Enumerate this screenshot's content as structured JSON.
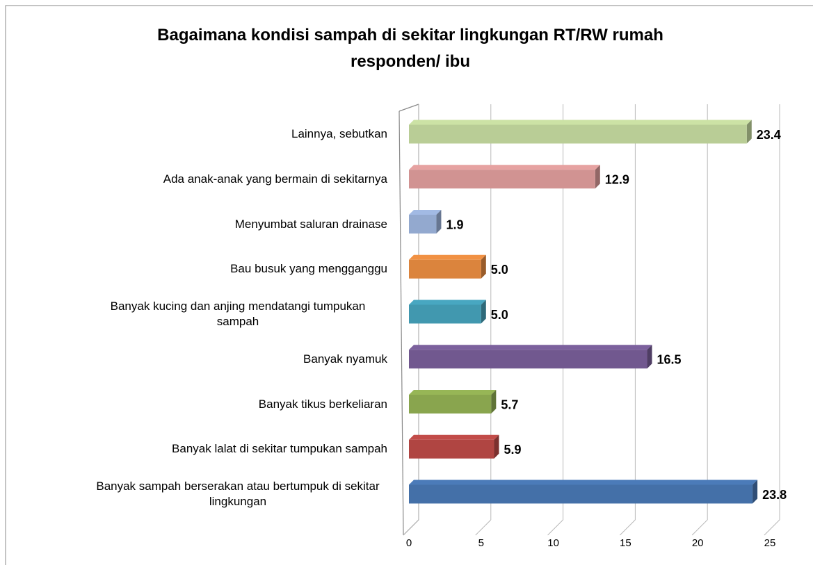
{
  "chart_data": {
    "type": "bar3d_horizontal",
    "title": "Bagaimana kondisi sampah di sekitar lingkungan RT/RW rumah responden/ ibu",
    "categories": [
      "Banyak sampah berserakan atau bertumpuk di sekitar lingkungan",
      "Banyak lalat di sekitar tumpukan sampah",
      "Banyak tikus berkeliaran",
      "Banyak nyamuk",
      "Banyak kucing dan anjing mendatangi tumpukan sampah",
      "Bau busuk yang mengganggu",
      "Menyumbat saluran drainase",
      "Ada anak-anak yang bermain di sekitarnya",
      "Lainnya, sebutkan"
    ],
    "values": [
      23.8,
      5.9,
      5.7,
      16.5,
      5.0,
      5.0,
      1.9,
      12.9,
      23.4
    ],
    "value_labels": [
      "23.8",
      "5.9",
      "5.7",
      "16.5",
      "5.0",
      "5.0",
      "1.9",
      "12.9",
      "23.4"
    ],
    "colors": [
      "#4470a8",
      "#b04542",
      "#89a54e",
      "#71588f",
      "#4198af",
      "#db843d",
      "#93a9cf",
      "#d19392",
      "#b9cd96"
    ],
    "xlim": [
      0,
      25
    ],
    "xticks": [
      0,
      5,
      10,
      15,
      20,
      25
    ],
    "grid": true
  }
}
